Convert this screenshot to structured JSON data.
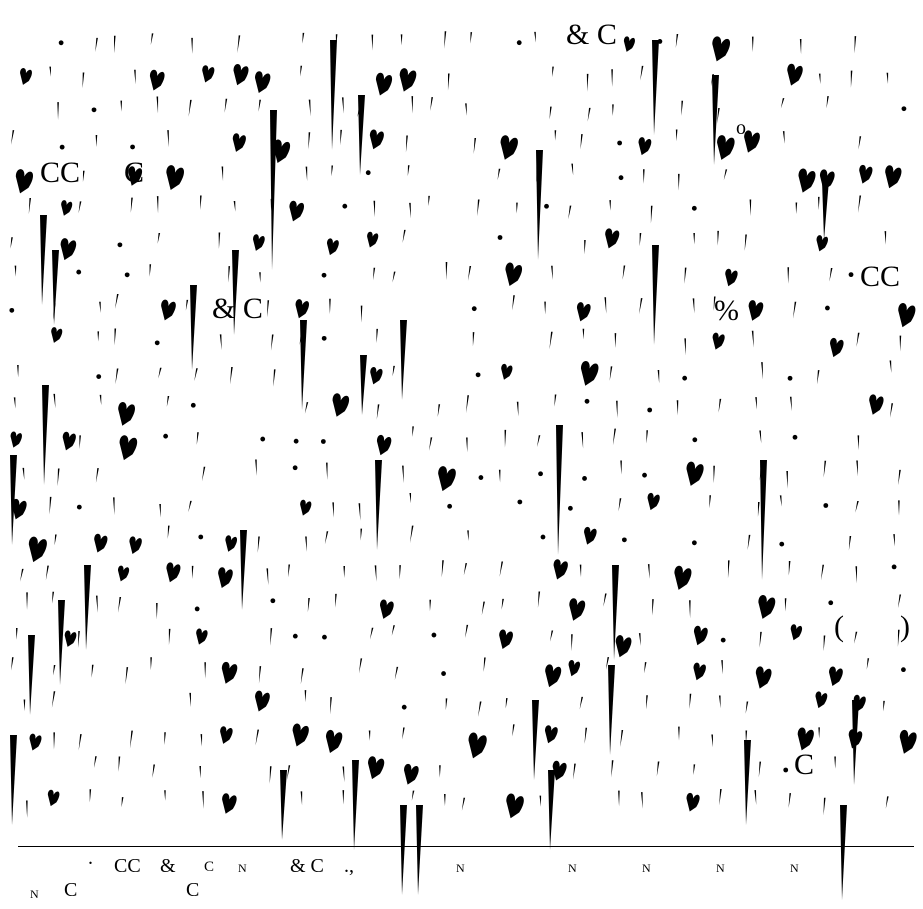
{
  "fragments": {
    "f01": "& C",
    "f02": "CC",
    "f03": "C",
    "f04": "o",
    "f05": "CC",
    "f06": "& C",
    "f07": "%",
    "f08": "(",
    "f09": ")",
    "f10": "C",
    "f11": ".",
    "f12": "CC",
    "f13": "&",
    "f14": "C",
    "f15": "N",
    "f16": "& C",
    "f17": ".,",
    "f18": "N",
    "f19": "N",
    "f20": "N",
    "f21": "N",
    "f22": "N",
    "f23": "N",
    "f24": "C",
    "f25": "C"
  },
  "colors": {
    "ink": "#000000",
    "background": "#ffffff"
  }
}
